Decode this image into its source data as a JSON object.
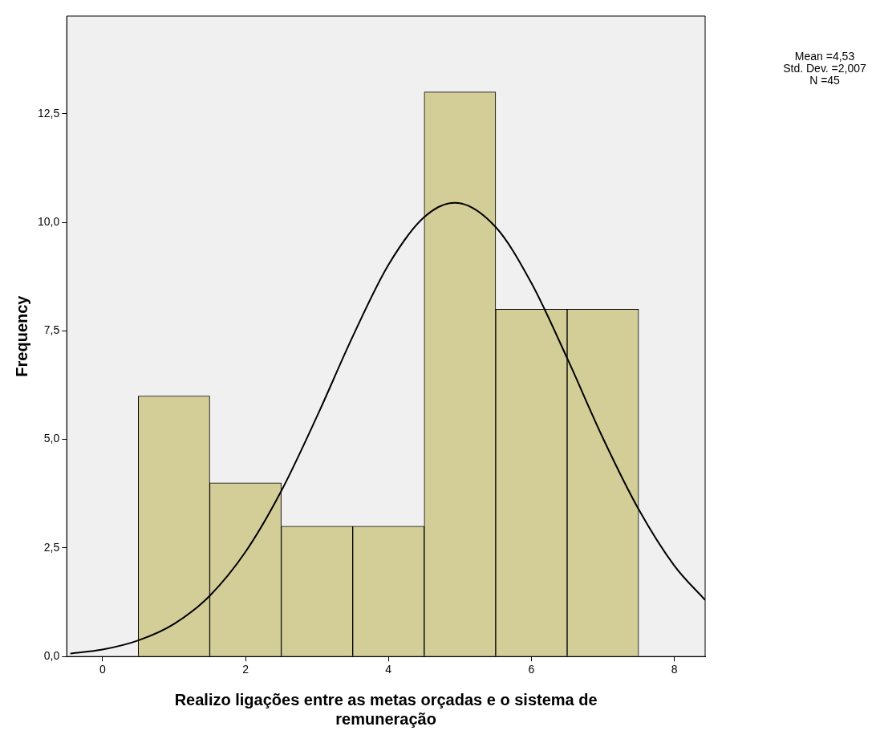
{
  "chart_data": {
    "type": "histogram",
    "xlabel": "Realizo ligações entre as metas orçadas e o sistema de remuneração",
    "ylabel": "Frequency",
    "bins": [
      0.5,
      1.5,
      2.5,
      3.5,
      4.5,
      5.5,
      6.5,
      7.5
    ],
    "values": [
      6,
      4,
      3,
      3,
      13,
      8,
      8
    ],
    "color": "#d3cd97",
    "series": [
      {
        "type": "line",
        "color": "#000000",
        "x": [
          -0.45,
          0,
          0.5,
          1,
          1.5,
          2,
          2.5,
          3,
          3.5,
          4,
          4.5,
          4.93,
          5.5,
          6,
          6.5,
          7,
          7.5,
          8,
          8.43
        ],
        "values": [
          0.07,
          0.16,
          0.37,
          0.75,
          1.4,
          2.41,
          3.81,
          5.53,
          7.37,
          9.02,
          10.12,
          10.45,
          9.89,
          8.6,
          6.87,
          5.03,
          3.39,
          2.09,
          1.3
        ]
      }
    ],
    "xlim": [
      -0.5,
      8.43
    ],
    "xticks": [
      0,
      2,
      4,
      6,
      8
    ],
    "ylim": [
      0,
      14.75
    ],
    "yticks": [
      {
        "value": 0,
        "label": "0,0"
      },
      {
        "value": 2.5,
        "label": "2,5"
      },
      {
        "value": 5,
        "label": "5,0"
      },
      {
        "value": 7.5,
        "label": "7,5"
      },
      {
        "value": 10,
        "label": "10,0"
      },
      {
        "value": 12.5,
        "label": "12,5"
      }
    ],
    "annotations": [
      "Mean =4,53",
      "Std. Dev. =2,007",
      "N =45"
    ]
  }
}
